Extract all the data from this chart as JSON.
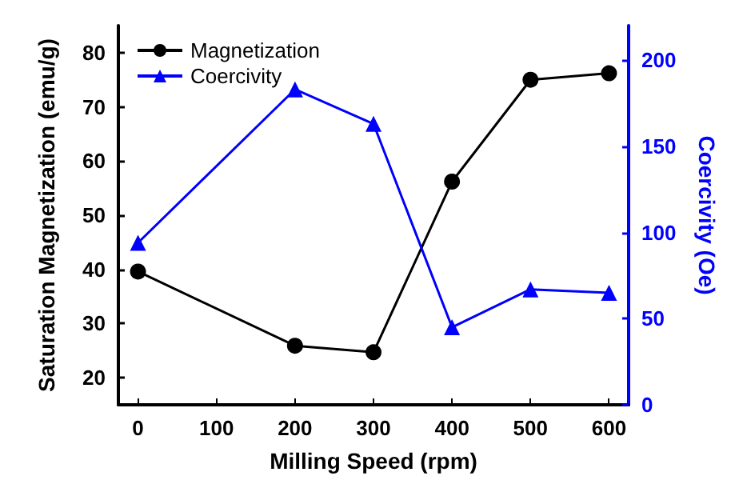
{
  "chart_data": {
    "type": "line",
    "xlabel": "Milling Speed (rpm)",
    "ylabel": "Saturation Magnetization (emu/g)",
    "y2label": "Coercivity (Oe)",
    "x": [
      0,
      200,
      300,
      400,
      500,
      600
    ],
    "series": [
      {
        "name": "Magnetization",
        "color": "#000000",
        "marker": "circle",
        "values": [
          39.6,
          25.9,
          24.7,
          56.2,
          75.0,
          76.2
        ]
      },
      {
        "name": "Coercivity",
        "color": "#0000ff",
        "marker": "triangle",
        "axis": "y2",
        "values": [
          94,
          183,
          163,
          45,
          67,
          65
        ]
      }
    ],
    "xlim": [
      -25,
      625
    ],
    "xticks": [
      0,
      100,
      200,
      300,
      400,
      500,
      600
    ],
    "ylim": [
      15,
      85
    ],
    "yticks": [
      20,
      30,
      40,
      50,
      60,
      70,
      80
    ],
    "y2lim": [
      0,
      220
    ],
    "y2ticks": [
      0,
      50,
      100,
      150,
      200
    ],
    "grid": false,
    "legend": "top left"
  }
}
